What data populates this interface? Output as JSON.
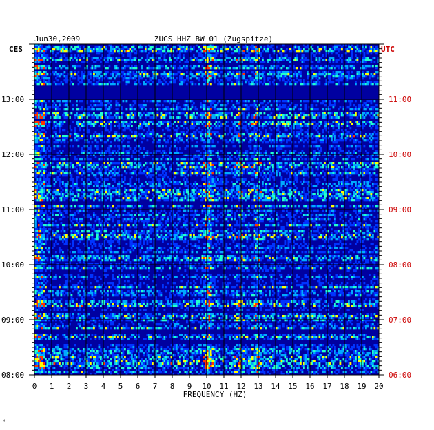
{
  "header": {
    "date": "Jun30,2009",
    "station": "ZUGS HHZ BW 01 (Zugspitze)"
  },
  "chart_data": {
    "type": "heatmap",
    "title": "ZUGS HHZ BW 01 (Zugspitze)",
    "date": "Jun30,2009",
    "xlabel": "FREQUENCY (HZ)",
    "xlim": [
      0,
      20
    ],
    "x_ticks": [
      "0",
      "1",
      "2",
      "3",
      "4",
      "5",
      "6",
      "7",
      "8",
      "9",
      "10",
      "11",
      "12",
      "13",
      "14",
      "15",
      "16",
      "17",
      "18",
      "19",
      "20"
    ],
    "left_axis_label": "CES",
    "right_axis_label": "UTC",
    "left_time_ticks": [
      "08:00",
      "09:00",
      "10:00",
      "11:00",
      "12:00",
      "13:00"
    ],
    "right_time_ticks": [
      "06:00",
      "07:00",
      "08:00",
      "09:00",
      "10:00",
      "11:00"
    ],
    "time_range_hours_ces": [
      8,
      14
    ],
    "grid": true,
    "colormap": [
      "#0000a0",
      "#0033ff",
      "#00aaff",
      "#22ffcc",
      "#ffff00",
      "#ff3300"
    ],
    "notable_bands_hz": [
      {
        "freq": 10.1,
        "note": "persistent strong band"
      },
      {
        "freq": 12.9,
        "note": "intermittent band"
      },
      {
        "freq": 11.9,
        "note": "intermittent band"
      }
    ],
    "quiet_periods_ces": [
      {
        "start": "13:00",
        "end": "13:15"
      }
    ]
  },
  "colors": {
    "utc_label": "#cc0000",
    "ces_label": "#000000",
    "grid": "#000000"
  },
  "footer_mark": "ᴺ"
}
